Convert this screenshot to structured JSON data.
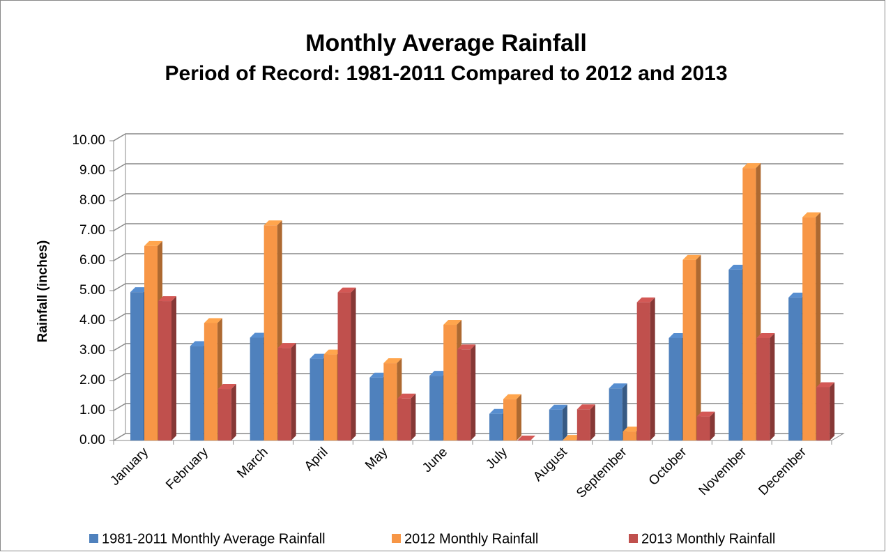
{
  "chart_data": {
    "type": "bar3d",
    "title": "Monthly Average Rainfall",
    "subtitle": "Period of Record: 1981-2011  Compared to 2012 and 2013",
    "y_label": "Rainfall (inches)",
    "categories": [
      "January",
      "February",
      "March",
      "April",
      "May",
      "June",
      "July",
      "August",
      "September",
      "October",
      "November",
      "December"
    ],
    "series": [
      {
        "name": "1981-2011 Monthly Average Rainfall",
        "color": "#4f81bd",
        "values": [
          4.95,
          3.15,
          3.43,
          2.73,
          2.1,
          2.16,
          0.89,
          1.03,
          1.74,
          3.42,
          5.7,
          4.77
        ]
      },
      {
        "name": "2012 Monthly Rainfall",
        "color": "#f79646",
        "values": [
          6.49,
          3.92,
          7.18,
          2.87,
          2.58,
          3.86,
          1.38,
          0.02,
          0.3,
          6.03,
          9.09,
          7.45
        ]
      },
      {
        "name": "2013 Monthly Rainfall",
        "color": "#c0504d",
        "values": [
          4.65,
          1.72,
          3.09,
          4.94,
          1.4,
          3.04,
          0.0,
          1.04,
          4.61,
          0.8,
          3.42,
          1.78
        ]
      }
    ],
    "ylim": [
      0,
      10
    ],
    "yticks": [
      {
        "value": 0,
        "label": "0.00"
      },
      {
        "value": 1,
        "label": "1.00"
      },
      {
        "value": 2,
        "label": "2.00"
      },
      {
        "value": 3,
        "label": "3.00"
      },
      {
        "value": 4,
        "label": "4.00"
      },
      {
        "value": 5,
        "label": "5.00"
      },
      {
        "value": 6,
        "label": "6.00"
      },
      {
        "value": 7,
        "label": "7.00"
      },
      {
        "value": 8,
        "label": "8.00"
      },
      {
        "value": 9,
        "label": "9.00"
      },
      {
        "value": 10,
        "label": "10.00"
      }
    ],
    "grid": true,
    "legend": "bottom"
  }
}
